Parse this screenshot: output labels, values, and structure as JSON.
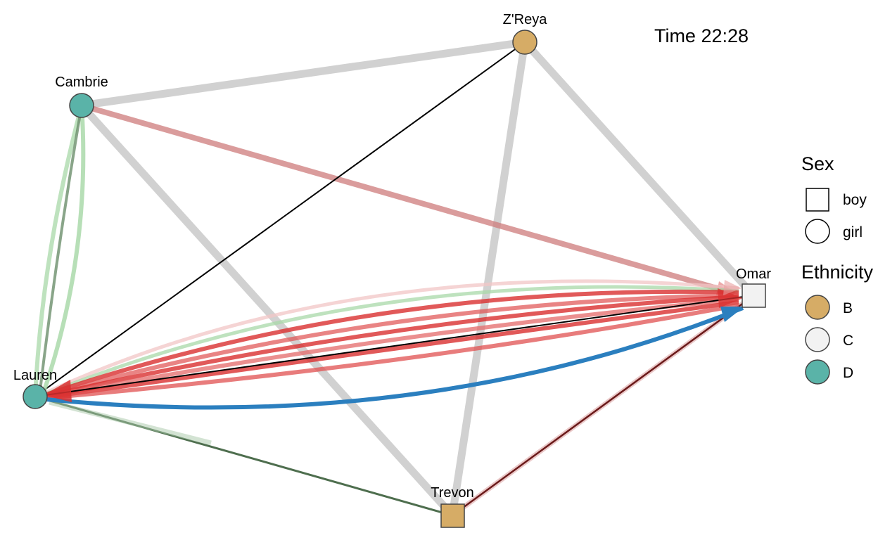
{
  "time_label": "Time 22:28",
  "nodes": [
    {
      "id": "zreya",
      "label": "Z'Reya",
      "sex": "girl",
      "ethnicity": "B"
    },
    {
      "id": "cambrie",
      "label": "Cambrie",
      "sex": "girl",
      "ethnicity": "D"
    },
    {
      "id": "omar",
      "label": "Omar",
      "sex": "boy",
      "ethnicity": "C"
    },
    {
      "id": "lauren",
      "label": "Lauren",
      "sex": "girl",
      "ethnicity": "D"
    },
    {
      "id": "trevon",
      "label": "Trevon",
      "sex": "boy",
      "ethnicity": "B"
    }
  ],
  "edges": [
    {
      "from": "cambrie",
      "to": "zreya",
      "color": "#cccccc"
    },
    {
      "from": "cambrie",
      "to": "trevon",
      "color": "#cccccc"
    },
    {
      "from": "cambrie",
      "to": "omar",
      "color": "#d28a8a"
    },
    {
      "from": "zreya",
      "to": "omar",
      "color": "#cccccc"
    },
    {
      "from": "zreya",
      "to": "trevon",
      "color": "#cccccc"
    },
    {
      "from": "zreya",
      "to": "lauren",
      "color": "#000000"
    },
    {
      "from": "cambrie",
      "to": "lauren",
      "color": "#9fd49f"
    },
    {
      "from": "lauren",
      "to": "trevon",
      "color": "#4e6e4e"
    },
    {
      "from": "trevon",
      "to": "omar",
      "color": "#6b1a1a"
    },
    {
      "from": "omar",
      "to": "lauren",
      "color": "#d93030"
    },
    {
      "from": "lauren",
      "to": "omar",
      "color": "#2b7fbf"
    },
    {
      "from": "lauren",
      "to": "omar",
      "color": "#000000"
    }
  ],
  "legend": {
    "sex_title": "Sex",
    "sex_items": [
      {
        "label": "boy",
        "shape": "square"
      },
      {
        "label": "girl",
        "shape": "circle"
      }
    ],
    "ethnicity_title": "Ethnicity",
    "ethnicity_items": [
      {
        "label": "B",
        "color": "#d6ac66"
      },
      {
        "label": "C",
        "color": "#f2f2f2"
      },
      {
        "label": "D",
        "color": "#5ab3a8"
      }
    ]
  }
}
